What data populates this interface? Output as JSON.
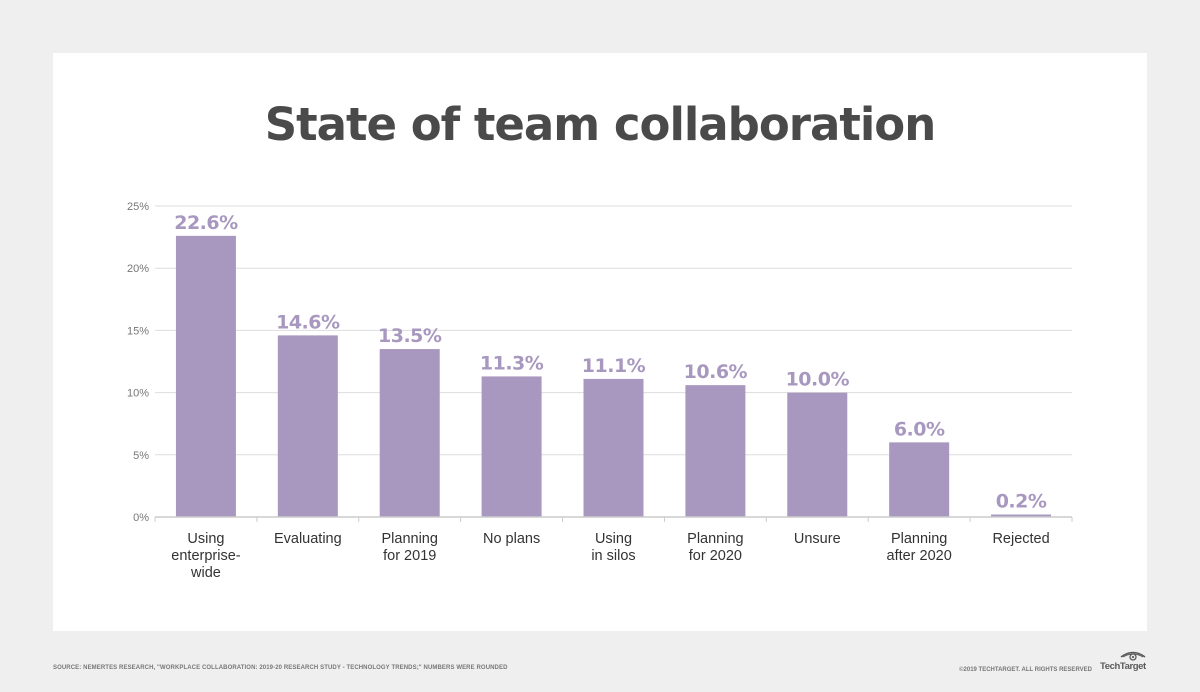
{
  "title": "State of team collaboration",
  "footer": {
    "source": "Source: Nemertes Research, \"Workplace collaboration: 2019-20 Research Study - Technology Trends;\" numbers were rounded",
    "copyright": "©2019 TechTarget. All rights reserved",
    "logo_text": "TechTarget"
  },
  "colors": {
    "bar": "#a898bf",
    "bar_label": "#a898bf",
    "title": "#4a4a4a",
    "grid": "#dddddd",
    "tick": "#777777",
    "category": "#333333"
  },
  "chart_data": {
    "type": "bar",
    "categories": [
      [
        "Using",
        "enterprise-",
        "wide"
      ],
      [
        "Evaluating"
      ],
      [
        "Planning",
        "for 2019"
      ],
      [
        "No plans"
      ],
      [
        "Using",
        "in silos"
      ],
      [
        "Planning",
        "for 2020"
      ],
      [
        "Unsure"
      ],
      [
        "Planning",
        "after 2020"
      ],
      [
        "Rejected"
      ]
    ],
    "values": [
      22.6,
      14.6,
      13.5,
      11.3,
      11.1,
      10.6,
      10.0,
      6.0,
      0.2
    ],
    "value_labels": [
      "22.6%",
      "14.6%",
      "13.5%",
      "11.3%",
      "11.1%",
      "10.6%",
      "10.0%",
      "6.0%",
      "0.2%"
    ],
    "y_ticks": [
      0,
      5,
      10,
      15,
      20,
      25
    ],
    "y_tick_labels": [
      "0%",
      "5%",
      "10%",
      "15%",
      "20%",
      "25%"
    ],
    "ylim": [
      0,
      25
    ],
    "grid": true,
    "legend": "none"
  }
}
